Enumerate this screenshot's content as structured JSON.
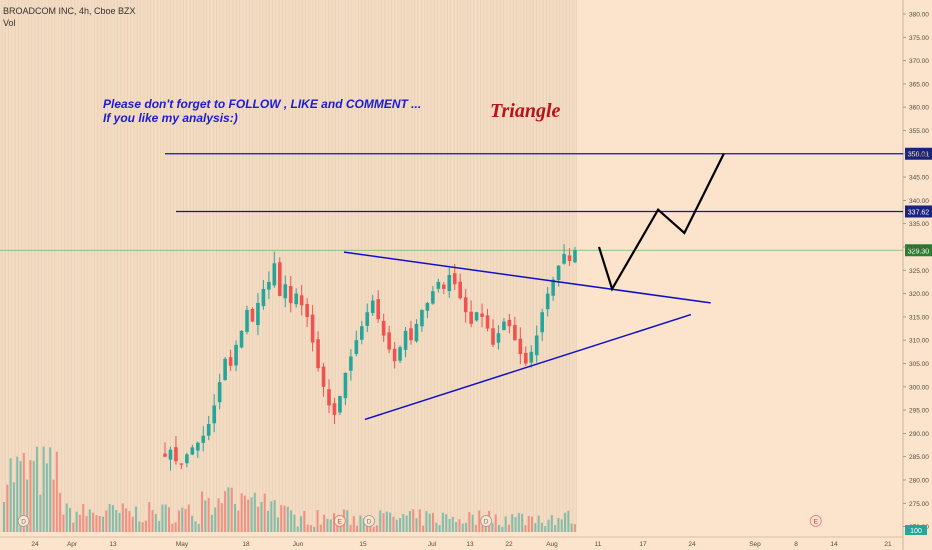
{
  "header": {
    "symbol_line": "BROADCOM INC, 4h, Cboe BZX",
    "volume_label": "Vol"
  },
  "annotations": {
    "note_line1": "Please don't forget  to FOLLOW , LIKE and COMMENT ...",
    "note_line2": "If you like my analysis:)",
    "pattern_label": "Triangle"
  },
  "colors": {
    "background": "#fbe3cc",
    "history_band": "#f3dcc4",
    "up": "#26a69a",
    "down": "#ef5350",
    "level_line": "#1010c8",
    "projection": "#000000",
    "last_price_line": "#4caf50",
    "last_price_box": "#2e7d32"
  },
  "chart_data": {
    "type": "candlestick",
    "title": "BROADCOM INC, 4h, Cboe BZX",
    "x_tick_labels": [
      "24",
      "Apr",
      "13",
      "May",
      "18",
      "Jun",
      "15",
      "Jul",
      "13",
      "22",
      "Aug",
      "11",
      "17",
      "24",
      "Sep",
      "8",
      "14",
      "21"
    ],
    "y_tick_labels": [
      "270.00",
      "275.00",
      "280.00",
      "285.00",
      "290.00",
      "295.00",
      "300.00",
      "305.00",
      "310.00",
      "315.00",
      "320.00",
      "325.00",
      "330.00",
      "335.00",
      "340.00",
      "345.00",
      "350.00",
      "355.00",
      "360.00",
      "365.00",
      "370.00",
      "375.00",
      "380.00"
    ],
    "ylim": [
      265.5,
      381.5
    ],
    "horizontal_levels": [
      {
        "price": 350.01,
        "label": "350.01"
      },
      {
        "price": 337.62,
        "label": "337.62"
      }
    ],
    "last_price": {
      "price": 329.3,
      "label": "329.30"
    },
    "volume_label_box": "100",
    "event_markers": [
      {
        "letter": "D",
        "x": "Mar 21"
      },
      {
        "letter": "E",
        "x": "Jun 11"
      },
      {
        "letter": "D",
        "x": "Jun 18"
      },
      {
        "letter": "D",
        "x": "Jul 16"
      },
      {
        "letter": "E",
        "x": "Sep 10"
      }
    ],
    "triangle": {
      "upper_line": [
        [
          "Jun 12",
          328.9
        ],
        [
          "Aug 25",
          318.0
        ]
      ],
      "lower_line": [
        [
          "Jun 17",
          293.0
        ],
        [
          "Aug 22",
          315.5
        ]
      ]
    },
    "projection_path": [
      [
        "Aug 8",
        330.0
      ],
      [
        "Aug 10",
        321.0
      ],
      [
        "Aug 17",
        338.0
      ],
      [
        "Aug 21",
        333.0
      ],
      [
        "Aug 27",
        350.0
      ]
    ],
    "price_path": [
      [
        285.0,
        0
      ],
      [
        286.5,
        0
      ],
      [
        284.0,
        0
      ],
      [
        283.5,
        0
      ],
      [
        285.5,
        0
      ],
      [
        287.0,
        0
      ],
      [
        288.0,
        0
      ],
      [
        289.5,
        0
      ],
      [
        292.0,
        1
      ],
      [
        296.0,
        1
      ],
      [
        301.0,
        1
      ],
      [
        306.0,
        1
      ],
      [
        304.5,
        1
      ],
      [
        309.0,
        1
      ],
      [
        312.0,
        1
      ],
      [
        316.5,
        1
      ],
      [
        314.0,
        1
      ],
      [
        318.0,
        1
      ],
      [
        321.0,
        1
      ],
      [
        322.5,
        1
      ],
      [
        326.5,
        1
      ],
      [
        319.5,
        1
      ],
      [
        322.0,
        1
      ],
      [
        318.0,
        1
      ],
      [
        320.0,
        1
      ],
      [
        317.5,
        1
      ],
      [
        315.0,
        1
      ],
      [
        309.5,
        1
      ],
      [
        304.0,
        1
      ],
      [
        300.0,
        1
      ],
      [
        296.0,
        1
      ],
      [
        294.0,
        1
      ],
      [
        298.0,
        1
      ],
      [
        303.0,
        1
      ],
      [
        306.5,
        1
      ],
      [
        310.0,
        1
      ],
      [
        313.0,
        1
      ],
      [
        316.0,
        1
      ],
      [
        318.5,
        1
      ],
      [
        314.5,
        1
      ],
      [
        311.0,
        1
      ],
      [
        308.0,
        1
      ],
      [
        305.5,
        1
      ],
      [
        308.5,
        1
      ],
      [
        312.0,
        1
      ],
      [
        310.0,
        1
      ],
      [
        313.5,
        1
      ],
      [
        316.5,
        1
      ],
      [
        318.0,
        1
      ],
      [
        320.5,
        1
      ],
      [
        322.5,
        1
      ],
      [
        321.0,
        1
      ],
      [
        324.0,
        1
      ],
      [
        322.0,
        1
      ],
      [
        319.0,
        1
      ],
      [
        316.0,
        1
      ],
      [
        313.5,
        1
      ],
      [
        316.0,
        1
      ],
      [
        315.0,
        1
      ],
      [
        312.5,
        1
      ],
      [
        309.0,
        1
      ],
      [
        311.5,
        1
      ],
      [
        314.0,
        1
      ],
      [
        313.0,
        1
      ],
      [
        310.0,
        1
      ],
      [
        307.0,
        1
      ],
      [
        305.0,
        1
      ],
      [
        307.5,
        1
      ],
      [
        311.0,
        1
      ],
      [
        316.0,
        1
      ],
      [
        320.0,
        1
      ],
      [
        323.0,
        1
      ],
      [
        326.0,
        1
      ],
      [
        328.5,
        1
      ],
      [
        327.0,
        1
      ],
      [
        329.3,
        1
      ]
    ]
  }
}
